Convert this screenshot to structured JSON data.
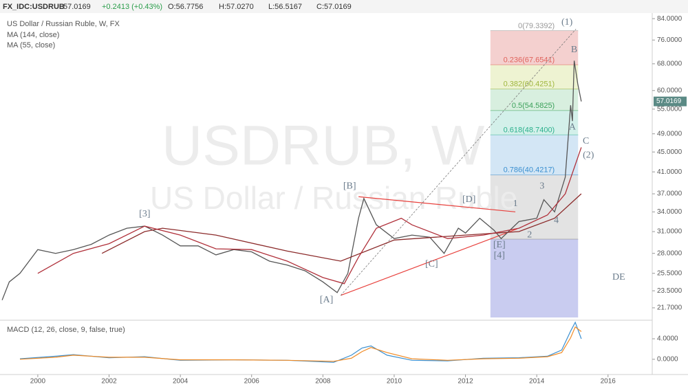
{
  "chart_data": {
    "type": "line",
    "header": {
      "symbol": "FX_IDC:USDRUB",
      "last": "57.0169",
      "change": "+0.2413 (+0.43%)",
      "open": "O:56.7756",
      "high": "H:57.0270",
      "low": "L:56.5167",
      "close": "C:57.0169"
    },
    "title": "US Dollar / Russian Ruble, W, FX",
    "indicators": [
      "MA (144, close)",
      "MA (55, close)"
    ],
    "watermark": [
      "USDRUB, W",
      "US Dollar / Russian Ruble"
    ],
    "log_scale": true,
    "xlim": [
      1998.94,
      2017.24
    ],
    "xticks": [
      2000,
      2002,
      2004,
      2006,
      2008,
      2010,
      2012,
      2014,
      2016
    ],
    "ylim": [
      20.74,
      85.4
    ],
    "yticks": [
      {
        "value": 84,
        "label": "84.0000"
      },
      {
        "value": 76,
        "label": "76.0000"
      },
      {
        "value": 68,
        "label": "68.0000"
      },
      {
        "value": 60,
        "label": "60.0000"
      },
      {
        "value": 55,
        "label": "55.0000"
      },
      {
        "value": 49,
        "label": "49.0000"
      },
      {
        "value": 45,
        "label": "45.0000"
      },
      {
        "value": 41,
        "label": "41.0000"
      },
      {
        "value": 37,
        "label": "37.0000"
      },
      {
        "value": 34,
        "label": "34.0000"
      },
      {
        "value": 31,
        "label": "31.0000"
      },
      {
        "value": 28,
        "label": "28.0000"
      },
      {
        "value": 25.5,
        "label": "25.5000"
      },
      {
        "value": 23.5,
        "label": "23.5000"
      },
      {
        "value": 21.7,
        "label": "21.7000"
      }
    ],
    "last_price": 57.0169,
    "last_price_color": "#5b8a85",
    "series": [
      {
        "color": "#555555",
        "x": [
          1999.0,
          1999.2,
          1999.5,
          2000.0,
          2000.5,
          2001.0,
          2001.5,
          2002.0,
          2002.5,
          2003.0,
          2003.5,
          2004.0,
          2004.5,
          2005.0,
          2005.5,
          2006.0,
          2006.5,
          2007.0,
          2007.5,
          2008.0,
          2008.4,
          2008.7,
          2009.0,
          2009.15,
          2009.5,
          2010.0,
          2010.5,
          2011.0,
          2011.4,
          2011.8,
          2012.0,
          2012.4,
          2012.8,
          2013.0,
          2013.5,
          2014.0,
          2014.2,
          2014.5,
          2014.8,
          2014.95,
          2015.0,
          2015.05,
          2015.15,
          2015.25
        ],
        "values": [
          22.5,
          24.5,
          25.5,
          28.5,
          28.0,
          28.5,
          29.2,
          30.5,
          31.5,
          31.8,
          30.5,
          29.0,
          29.0,
          27.8,
          28.5,
          28.2,
          27.0,
          26.5,
          25.8,
          24.5,
          23.3,
          25.5,
          33.0,
          36.2,
          32.0,
          30.0,
          30.5,
          30.2,
          28.0,
          31.5,
          30.8,
          33.0,
          31.2,
          30.0,
          32.5,
          33.0,
          36.0,
          34.0,
          40.0,
          56.0,
          52.0,
          69.0,
          62.0,
          57.0169
        ]
      },
      {
        "color": "#8b2a2a",
        "x": [
          2001.8,
          2003.0,
          2003.5,
          2005.0,
          2007.0,
          2008.5,
          2010.0,
          2012.0,
          2013.5,
          2014.5,
          2015.25
        ],
        "values": [
          28.0,
          31.0,
          31.5,
          30.5,
          28.3,
          27.0,
          29.8,
          30.5,
          31.0,
          33.0,
          37.0
        ]
      },
      {
        "color": "#b0303a",
        "x": [
          2000.0,
          2001.0,
          2002.0,
          2003.0,
          2004.0,
          2005.0,
          2006.0,
          2007.0,
          2008.0,
          2008.6,
          2009.0,
          2009.5,
          2010.2,
          2010.5,
          2011.5,
          2012.5,
          2013.5,
          2014.3,
          2014.8,
          2015.25
        ],
        "values": [
          25.5,
          28.0,
          29.3,
          31.8,
          30.5,
          28.6,
          28.5,
          27.0,
          25.0,
          24.3,
          27.5,
          31.5,
          33.0,
          32.0,
          30.0,
          30.5,
          31.5,
          33.5,
          37.0,
          46.0
        ]
      }
    ],
    "fib_x": [
      2012.7,
      2015.16
    ],
    "fib_levels": [
      {
        "label": "0(79.3392)",
        "value": 79.3392,
        "line_color": "#999999"
      },
      {
        "label": "0.236(67.6541)",
        "value": 67.6541,
        "line_color": "#e0625b",
        "band": "#f4d0cf"
      },
      {
        "label": "0.382(60.4251)",
        "value": 60.4251,
        "line_color": "#9fb63c",
        "band": "#eef3d2"
      },
      {
        "label": "0.5(54.5825)",
        "value": 54.5825,
        "line_color": "#3ba05a",
        "band": "#d8efdf"
      },
      {
        "label": "0.618(48.7400)",
        "value": 48.74,
        "line_color": "#2ab08c",
        "band": "#d3f0ea"
      },
      {
        "label": "0.786(40.4217)",
        "value": 40.4217,
        "line_color": "#3a8fd0",
        "band": "#d3e6f5"
      },
      {
        "value": 29.9,
        "line_color": "#888888",
        "band": "#e3e3e3"
      }
    ],
    "fib_band_below": "#c9ccf0",
    "trend_lines": [
      {
        "x": [
          2008.5,
          2013.45
        ],
        "y": [
          23.0,
          31.4
        ],
        "color": "#e8403c",
        "dash": false
      },
      {
        "x": [
          2009.0,
          2013.4
        ],
        "y": [
          36.5,
          34.0
        ],
        "color": "#e8403c",
        "dash": false
      },
      {
        "x": [
          2008.5,
          2015.1
        ],
        "y": [
          23.0,
          80.0
        ],
        "color": "#777777",
        "dash": true
      }
    ],
    "annotations": [
      {
        "text": "(1)",
        "x": 2014.85,
        "y": 82.5
      },
      {
        "text": "B",
        "x": 2015.05,
        "y": 72.5
      },
      {
        "text": "A",
        "x": 2015.0,
        "y": 50.5
      },
      {
        "text": "C",
        "x": 2015.38,
        "y": 47.3
      },
      {
        "text": "(2)",
        "x": 2015.45,
        "y": 44.3
      },
      {
        "text": "3",
        "x": 2014.15,
        "y": 38.3
      },
      {
        "text": "1",
        "x": 2013.4,
        "y": 35.3
      },
      {
        "text": "2",
        "x": 2013.8,
        "y": 30.5
      },
      {
        "text": "4",
        "x": 2014.55,
        "y": 32.6
      },
      {
        "text": "[B]",
        "x": 2008.75,
        "y": 38.3
      },
      {
        "text": "[3]",
        "x": 2003.0,
        "y": 33.6
      },
      {
        "text": "[D]",
        "x": 2012.1,
        "y": 36.0
      },
      {
        "text": "[C]",
        "x": 2011.05,
        "y": 26.6
      },
      {
        "text": "[A]",
        "x": 2008.1,
        "y": 22.5
      },
      {
        "text": "[E]",
        "x": 2012.95,
        "y": 29.1
      },
      {
        "text": "[4]",
        "x": 2012.95,
        "y": 27.7
      },
      {
        "text": "DE",
        "x": 2016.3,
        "y": 25.0
      }
    ],
    "macd_label": "MACD (12, 26, close, 9, false, true)",
    "y2lim": [
      -2.97,
      7.35
    ],
    "y2ticks": [
      {
        "value": 4,
        "label": "4.0000"
      },
      {
        "value": 0,
        "label": "0.0000"
      }
    ],
    "macd_x": [
      1999.5,
      2000.5,
      2001.0,
      2002.0,
      2003.0,
      2004.0,
      2005.5,
      2007.0,
      2008.3,
      2008.8,
      2009.1,
      2009.35,
      2009.8,
      2010.5,
      2011.5,
      2012.5,
      2013.5,
      2014.3,
      2014.7,
      2014.95,
      2015.08,
      2015.25
    ],
    "macd_series": [
      {
        "color": "#3a8fd0",
        "values": [
          0.1,
          0.6,
          0.9,
          0.3,
          0.5,
          -0.2,
          -0.1,
          -0.2,
          -0.6,
          0.8,
          2.2,
          2.6,
          0.8,
          -0.2,
          -0.3,
          0.2,
          0.3,
          0.6,
          1.8,
          5.5,
          7.2,
          4.0
        ]
      },
      {
        "color": "#f08a24",
        "values": [
          0.0,
          0.4,
          0.8,
          0.4,
          0.4,
          -0.1,
          -0.1,
          -0.2,
          -0.4,
          0.2,
          1.5,
          2.3,
          1.3,
          0.1,
          -0.2,
          0.1,
          0.2,
          0.5,
          1.3,
          4.2,
          6.3,
          5.4
        ]
      }
    ]
  }
}
